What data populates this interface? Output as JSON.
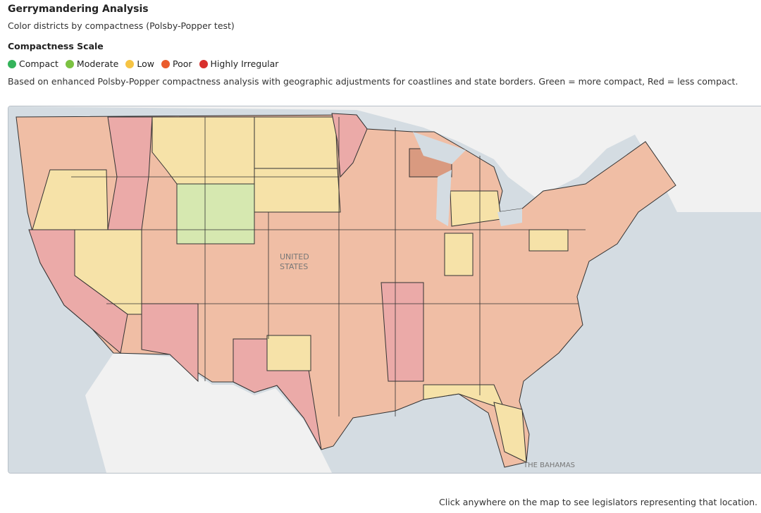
{
  "header": {
    "title": "Gerrymandering Analysis",
    "subtitle": "Color districts by compactness (Polsby-Popper test)"
  },
  "legend": {
    "title": "Compactness Scale",
    "items": [
      {
        "label": "Compact",
        "color": "#34b35a"
      },
      {
        "label": "Moderate",
        "color": "#7cc242"
      },
      {
        "label": "Low",
        "color": "#f6c444"
      },
      {
        "label": "Poor",
        "color": "#ea5b2c"
      },
      {
        "label": "Highly Irregular",
        "color": "#d8302d"
      }
    ]
  },
  "description": "Based on enhanced Polsby-Popper compactness analysis with geographic adjustments for coastlines and state borders. Green = more compact, Red = less compact.",
  "map": {
    "country_label": [
      "UNITED",
      "STATES"
    ],
    "place_label": "THE BAHAMAS"
  },
  "footer": "Click anywhere on the map to see legislators representing that location."
}
